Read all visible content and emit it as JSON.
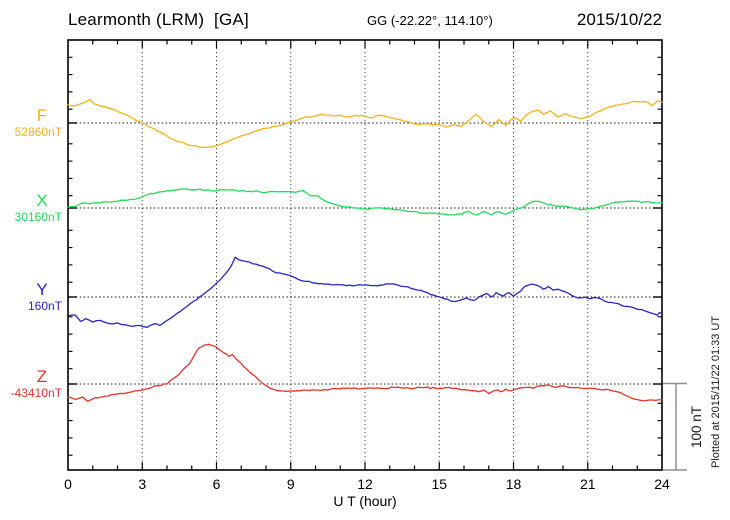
{
  "header": {
    "title": "Learmonth (LRM)  [GA]",
    "location": "GG (-22.22°, 114.10°)",
    "date": "2015/10/22"
  },
  "x_axis": {
    "label": "U T (hour)",
    "min": 0,
    "max": 24,
    "major_tick_step": 3,
    "minor_tick_step": 1,
    "tick_labels": [
      "0",
      "3",
      "6",
      "9",
      "12",
      "15",
      "18",
      "21",
      "24"
    ],
    "gridline_hours": [
      3,
      6,
      9,
      12,
      15,
      18,
      21
    ]
  },
  "y_axis": {
    "unit": "nT",
    "minor_tick_nT": 20,
    "scale_bar_nT": 100
  },
  "scale_bar": {
    "label": "100 nT",
    "span_nT": 100
  },
  "footnote": "Plotted at 2015/11/22 01:33 UT",
  "chart_data": {
    "type": "line",
    "station": "Learmonth (LRM)",
    "agency": "GA",
    "date_ut": "2015/10/22",
    "x_unit": "UT hour",
    "x_range": [
      0,
      24
    ],
    "grid": "dotted vertical every 3 h, dotted horizontal at each component baseline",
    "legend_position": "left margin, one colored label per trace",
    "y_value_convention": "value_nT = baseline_nT + offset; points are [hour, offset_nT]",
    "series": [
      {
        "id": "F",
        "label": "F",
        "baseline_label": "52860nT",
        "baseline_nT": 52860,
        "color": "#f6b219",
        "points": [
          [
            0,
            21
          ],
          [
            0.3,
            20
          ],
          [
            0.6,
            23
          ],
          [
            0.9,
            27
          ],
          [
            1.05,
            22
          ],
          [
            1.2,
            21
          ],
          [
            1.5,
            19
          ],
          [
            1.9,
            15
          ],
          [
            2.2,
            11
          ],
          [
            2.5,
            7
          ],
          [
            3.0,
            0
          ],
          [
            3.5,
            -7
          ],
          [
            4.0,
            -15
          ],
          [
            4.5,
            -22
          ],
          [
            5.0,
            -26
          ],
          [
            5.3,
            -28
          ],
          [
            5.7,
            -28
          ],
          [
            6.0,
            -26
          ],
          [
            6.3,
            -23
          ],
          [
            6.7,
            -18
          ],
          [
            7.0,
            -15
          ],
          [
            7.5,
            -10
          ],
          [
            8.0,
            -6
          ],
          [
            8.5,
            -3
          ],
          [
            9.0,
            1
          ],
          [
            9.5,
            6
          ],
          [
            10.0,
            8
          ],
          [
            10.3,
            10
          ],
          [
            10.7,
            8
          ],
          [
            11.0,
            9
          ],
          [
            11.3,
            7
          ],
          [
            11.6,
            9
          ],
          [
            12.0,
            8
          ],
          [
            12.3,
            6
          ],
          [
            12.6,
            9
          ],
          [
            13.0,
            6
          ],
          [
            13.4,
            4
          ],
          [
            13.8,
            1
          ],
          [
            14.2,
            -2
          ],
          [
            14.6,
            -1
          ],
          [
            15.0,
            -2
          ],
          [
            15.3,
            -5
          ],
          [
            15.6,
            -2
          ],
          [
            15.9,
            -4
          ],
          [
            16.2,
            3
          ],
          [
            16.5,
            10
          ],
          [
            16.8,
            1
          ],
          [
            17.1,
            -4
          ],
          [
            17.4,
            4
          ],
          [
            17.7,
            -3
          ],
          [
            18.0,
            6
          ],
          [
            18.3,
            2
          ],
          [
            18.6,
            11
          ],
          [
            19.0,
            15
          ],
          [
            19.2,
            10
          ],
          [
            19.5,
            14
          ],
          [
            19.8,
            7
          ],
          [
            20.1,
            11
          ],
          [
            20.4,
            7
          ],
          [
            20.7,
            5
          ],
          [
            21.0,
            7
          ],
          [
            21.4,
            13
          ],
          [
            21.9,
            19
          ],
          [
            22.4,
            22
          ],
          [
            22.9,
            25
          ],
          [
            23.3,
            25
          ],
          [
            23.6,
            20
          ],
          [
            23.8,
            25
          ],
          [
            24,
            24
          ]
        ]
      },
      {
        "id": "X",
        "label": "X",
        "baseline_label": "30160nT",
        "baseline_nT": 30160,
        "color": "#1fdf58",
        "points": [
          [
            0,
            1
          ],
          [
            0.3,
            2
          ],
          [
            0.6,
            6
          ],
          [
            0.9,
            5
          ],
          [
            1.2,
            6
          ],
          [
            1.6,
            7
          ],
          [
            2.0,
            8
          ],
          [
            2.4,
            9
          ],
          [
            2.8,
            11
          ],
          [
            3.2,
            15
          ],
          [
            3.6,
            18
          ],
          [
            4.0,
            20
          ],
          [
            4.4,
            21
          ],
          [
            4.8,
            22
          ],
          [
            5.2,
            21
          ],
          [
            5.6,
            21
          ],
          [
            6.0,
            20
          ],
          [
            6.4,
            21
          ],
          [
            6.8,
            20
          ],
          [
            7.2,
            19
          ],
          [
            7.6,
            20
          ],
          [
            8.0,
            18
          ],
          [
            8.4,
            19
          ],
          [
            8.8,
            19
          ],
          [
            9.2,
            18
          ],
          [
            9.5,
            20
          ],
          [
            9.8,
            14
          ],
          [
            10.1,
            14
          ],
          [
            10.4,
            8
          ],
          [
            10.8,
            4
          ],
          [
            11.2,
            1
          ],
          [
            11.6,
            0
          ],
          [
            12.0,
            -1
          ],
          [
            12.4,
            0
          ],
          [
            12.8,
            -1
          ],
          [
            13.2,
            -2
          ],
          [
            13.6,
            -3
          ],
          [
            14.0,
            -4
          ],
          [
            14.5,
            -6
          ],
          [
            15.0,
            -7
          ],
          [
            15.5,
            -8
          ],
          [
            15.9,
            -7
          ],
          [
            16.2,
            -4
          ],
          [
            16.5,
            -8
          ],
          [
            16.8,
            -4
          ],
          [
            17.1,
            -8
          ],
          [
            17.4,
            -4
          ],
          [
            17.7,
            -7
          ],
          [
            18.0,
            -3
          ],
          [
            18.3,
            0
          ],
          [
            18.6,
            5
          ],
          [
            18.9,
            8
          ],
          [
            19.2,
            6
          ],
          [
            19.5,
            4
          ],
          [
            19.8,
            2
          ],
          [
            20.1,
            2
          ],
          [
            20.4,
            0
          ],
          [
            20.7,
            -2
          ],
          [
            21.0,
            -1
          ],
          [
            21.4,
            1
          ],
          [
            21.9,
            5
          ],
          [
            22.4,
            7
          ],
          [
            22.9,
            8
          ],
          [
            23.3,
            7
          ],
          [
            23.7,
            6
          ],
          [
            24,
            6
          ]
        ]
      },
      {
        "id": "Y",
        "label": "Y",
        "baseline_label": "160nT",
        "baseline_nT": 160,
        "color": "#2525cd",
        "points": [
          [
            0,
            -22
          ],
          [
            0.3,
            -21
          ],
          [
            0.5,
            -28
          ],
          [
            0.7,
            -25
          ],
          [
            1.0,
            -29
          ],
          [
            1.3,
            -27
          ],
          [
            1.7,
            -31
          ],
          [
            2.0,
            -30
          ],
          [
            2.3,
            -32
          ],
          [
            2.6,
            -34
          ],
          [
            2.9,
            -33
          ],
          [
            3.2,
            -35
          ],
          [
            3.5,
            -31
          ],
          [
            3.7,
            -33
          ],
          [
            4.0,
            -27
          ],
          [
            4.4,
            -19
          ],
          [
            4.8,
            -11
          ],
          [
            5.2,
            -3
          ],
          [
            5.6,
            6
          ],
          [
            6.0,
            16
          ],
          [
            6.3,
            25
          ],
          [
            6.6,
            36
          ],
          [
            6.75,
            46
          ],
          [
            6.9,
            43
          ],
          [
            7.2,
            41
          ],
          [
            7.6,
            38
          ],
          [
            8.0,
            34
          ],
          [
            8.4,
            28
          ],
          [
            8.8,
            26
          ],
          [
            9.2,
            22
          ],
          [
            9.6,
            18
          ],
          [
            10.0,
            16
          ],
          [
            10.5,
            15
          ],
          [
            11.0,
            14
          ],
          [
            11.5,
            13
          ],
          [
            12.0,
            14
          ],
          [
            12.5,
            13
          ],
          [
            13.0,
            15
          ],
          [
            13.3,
            14
          ],
          [
            13.6,
            12
          ],
          [
            14.0,
            9
          ],
          [
            14.4,
            6
          ],
          [
            14.8,
            2
          ],
          [
            15.2,
            -2
          ],
          [
            15.5,
            -5
          ],
          [
            15.8,
            -4
          ],
          [
            16.1,
            -1
          ],
          [
            16.4,
            -4
          ],
          [
            16.6,
            0
          ],
          [
            16.9,
            4
          ],
          [
            17.1,
            0
          ],
          [
            17.3,
            5
          ],
          [
            17.6,
            1
          ],
          [
            17.8,
            5
          ],
          [
            18.0,
            1
          ],
          [
            18.3,
            7
          ],
          [
            18.5,
            13
          ],
          [
            18.7,
            15
          ],
          [
            19.0,
            13
          ],
          [
            19.2,
            9
          ],
          [
            19.4,
            12
          ],
          [
            19.6,
            8
          ],
          [
            19.8,
            9
          ],
          [
            20.1,
            6
          ],
          [
            20.4,
            1
          ],
          [
            20.6,
            -1
          ],
          [
            20.9,
            0
          ],
          [
            21.1,
            -2
          ],
          [
            21.4,
            -1
          ],
          [
            21.7,
            -5
          ],
          [
            22.1,
            -7
          ],
          [
            22.5,
            -11
          ],
          [
            22.9,
            -13
          ],
          [
            23.3,
            -16
          ],
          [
            23.6,
            -19
          ],
          [
            23.8,
            -21
          ],
          [
            23.9,
            -18
          ],
          [
            24,
            -19
          ]
        ]
      },
      {
        "id": "Z",
        "label": "Z",
        "baseline_label": "-43410nT",
        "baseline_nT": -43410,
        "color": "#e83228",
        "points": [
          [
            0,
            -15
          ],
          [
            0.3,
            -18
          ],
          [
            0.6,
            -15
          ],
          [
            0.8,
            -20
          ],
          [
            1.1,
            -16
          ],
          [
            1.5,
            -14
          ],
          [
            1.9,
            -12
          ],
          [
            2.3,
            -11
          ],
          [
            2.7,
            -8
          ],
          [
            3.0,
            -7
          ],
          [
            3.3,
            -5
          ],
          [
            3.6,
            -2
          ],
          [
            4.0,
            0
          ],
          [
            4.3,
            7
          ],
          [
            4.6,
            15
          ],
          [
            4.9,
            23
          ],
          [
            5.1,
            33
          ],
          [
            5.3,
            42
          ],
          [
            5.5,
            45
          ],
          [
            5.7,
            46
          ],
          [
            5.9,
            44
          ],
          [
            6.1,
            40
          ],
          [
            6.3,
            36
          ],
          [
            6.5,
            32
          ],
          [
            6.65,
            34
          ],
          [
            6.9,
            26
          ],
          [
            7.1,
            20
          ],
          [
            7.4,
            12
          ],
          [
            7.7,
            5
          ],
          [
            8.0,
            -2
          ],
          [
            8.3,
            -6
          ],
          [
            8.6,
            -8
          ],
          [
            9.0,
            -8
          ],
          [
            9.5,
            -7
          ],
          [
            10.0,
            -7
          ],
          [
            10.6,
            -6
          ],
          [
            11.2,
            -5
          ],
          [
            12.0,
            -5
          ],
          [
            12.6,
            -5
          ],
          [
            13.2,
            -4
          ],
          [
            13.8,
            -5
          ],
          [
            14.4,
            -4
          ],
          [
            15.0,
            -5
          ],
          [
            15.4,
            -4
          ],
          [
            15.8,
            -6
          ],
          [
            16.2,
            -7
          ],
          [
            16.6,
            -9
          ],
          [
            16.8,
            -7
          ],
          [
            17.0,
            -11
          ],
          [
            17.3,
            -7
          ],
          [
            17.5,
            -9
          ],
          [
            17.7,
            -6
          ],
          [
            17.9,
            -8
          ],
          [
            18.2,
            -5
          ],
          [
            18.5,
            -4
          ],
          [
            18.8,
            -5
          ],
          [
            19.1,
            -2
          ],
          [
            19.4,
            -1
          ],
          [
            19.7,
            -4
          ],
          [
            20.0,
            -2
          ],
          [
            20.3,
            -4
          ],
          [
            20.6,
            -4
          ],
          [
            21.0,
            -5
          ],
          [
            21.4,
            -6
          ],
          [
            21.9,
            -7
          ],
          [
            22.2,
            -9
          ],
          [
            22.6,
            -14
          ],
          [
            23.0,
            -18
          ],
          [
            23.4,
            -19
          ],
          [
            23.7,
            -19
          ],
          [
            24,
            -18
          ]
        ]
      }
    ]
  }
}
